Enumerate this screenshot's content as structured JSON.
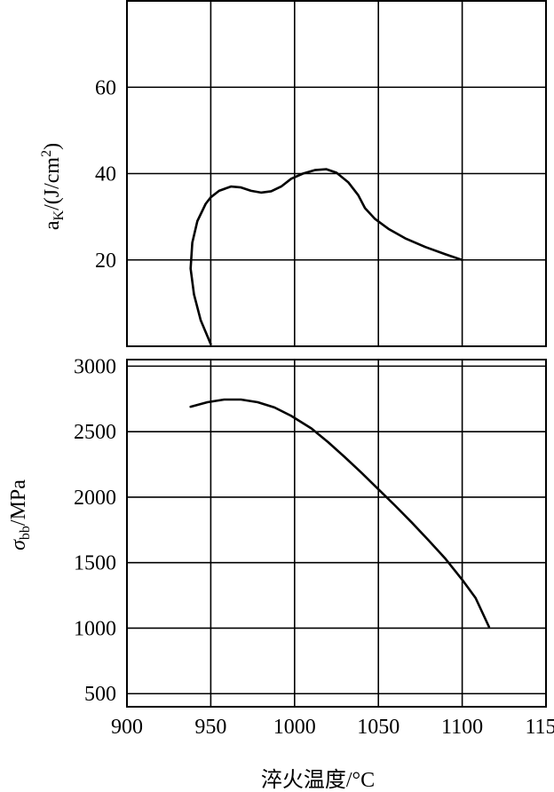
{
  "chart_data": [
    {
      "type": "line",
      "ylabel": "a_K/(J/cm²)",
      "ylabel_parts": {
        "base": "a",
        "sub": "K",
        "mid": "/(J/cm",
        "sup": "2",
        "end": ")"
      },
      "xlim": [
        900,
        1150
      ],
      "ylim": [
        0,
        80
      ],
      "x_ticks": [
        950,
        1000,
        1050,
        1100
      ],
      "y_ticks": [
        20,
        40,
        60
      ],
      "y_tick_labels": [
        "20",
        "40",
        "60"
      ],
      "grid": true,
      "series": [
        {
          "x": [
            950,
            944,
            940,
            938,
            939,
            942,
            947,
            950,
            955,
            962,
            968,
            974,
            980,
            986,
            992,
            998,
            1005,
            1012,
            1019,
            1025,
            1032,
            1038,
            1042,
            1048,
            1056,
            1066,
            1078,
            1090,
            1100
          ],
          "y": [
            0.5,
            6,
            12,
            18,
            24,
            29,
            33,
            34.5,
            36,
            37,
            36.8,
            36,
            35.6,
            35.9,
            37,
            38.8,
            40,
            40.8,
            41,
            40.2,
            38,
            35,
            32,
            29.5,
            27.2,
            25,
            23,
            21.3,
            20
          ]
        }
      ]
    },
    {
      "type": "line",
      "ylabel": "σ_bb/MPa",
      "ylabel_parts": {
        "base": "σ",
        "sub": "bb",
        "end": "/MPa"
      },
      "xlabel": "淬火温度/°C",
      "xlim": [
        900,
        1150
      ],
      "ylim": [
        400,
        3050
      ],
      "x_ticks": [
        900,
        950,
        1000,
        1050,
        1100,
        1150
      ],
      "x_tick_labels": [
        "900",
        "950",
        "1000",
        "1050",
        "1100",
        "1150"
      ],
      "y_ticks": [
        500,
        1000,
        1500,
        2000,
        2500,
        3000
      ],
      "y_tick_labels": [
        "500",
        "1000",
        "1500",
        "2000",
        "2500",
        "3000"
      ],
      "grid": true,
      "series": [
        {
          "x": [
            938,
            948,
            958,
            968,
            978,
            988,
            998,
            1010,
            1020,
            1030,
            1040,
            1050,
            1060,
            1070,
            1080,
            1090,
            1100,
            1108,
            1116
          ],
          "y": [
            2690,
            2725,
            2745,
            2745,
            2725,
            2685,
            2620,
            2525,
            2420,
            2305,
            2185,
            2060,
            1935,
            1805,
            1670,
            1530,
            1370,
            1230,
            1010
          ]
        }
      ]
    }
  ]
}
